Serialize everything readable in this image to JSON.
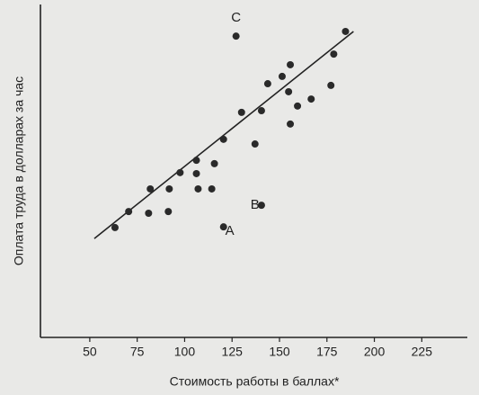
{
  "chart_data": {
    "type": "scatter",
    "xlabel": "Стоимость работы в баллах*",
    "ylabel": "Оплата труда в долларах за час",
    "xlim": [
      24,
      249
    ],
    "ylim": [
      0,
      100
    ],
    "xticks": [
      50,
      75,
      100,
      125,
      150,
      175,
      200,
      225
    ],
    "color": "#2a2a2a",
    "x": [
      63.3,
      70.5,
      81.0,
      91.4,
      81.9,
      91.9,
      97.6,
      107.1,
      114.3,
      106.2,
      106.2,
      115.7,
      120.5,
      127.1,
      120.5,
      130.0,
      137.1,
      140.5,
      143.8,
      140.5,
      151.4,
      154.8,
      155.7,
      155.7,
      159.5,
      166.7,
      177.1,
      178.6,
      184.8
    ],
    "y": [
      33.0,
      37.8,
      37.3,
      37.8,
      44.6,
      44.6,
      49.5,
      44.6,
      44.6,
      49.2,
      53.2,
      52.2,
      33.2,
      90.5,
      59.5,
      67.6,
      58.1,
      68.1,
      76.2,
      39.7,
      78.4,
      73.8,
      64.1,
      81.9,
      69.5,
      71.6,
      75.7,
      85.1,
      91.9
    ],
    "trend_line": {
      "x": [
        52.4,
        189.0
      ],
      "y": [
        29.7,
        91.9
      ]
    },
    "annotations": [
      {
        "text": "A",
        "x": 123.8,
        "y": 31.9
      },
      {
        "text": "B",
        "x": 137.1,
        "y": 39.7
      },
      {
        "text": "C",
        "x": 127.1,
        "y": 95.9
      }
    ]
  }
}
